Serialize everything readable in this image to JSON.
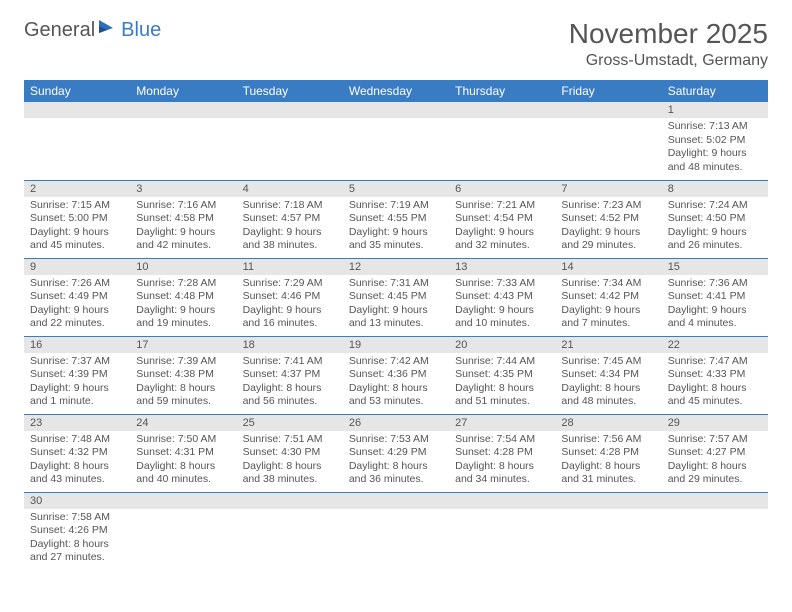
{
  "logo": {
    "text1": "General",
    "text2": "Blue"
  },
  "title": {
    "month": "November 2025",
    "location": "Gross-Umstadt, Germany"
  },
  "colors": {
    "header_bg": "#3a7cc4",
    "header_text": "#ffffff",
    "daynum_bg": "#e6e6e6",
    "text": "#555555",
    "row_border": "#3a7cc4",
    "page_bg": "#ffffff"
  },
  "typography": {
    "title_fontsize": 28,
    "location_fontsize": 16,
    "dayheader_fontsize": 12,
    "daynum_fontsize": 11,
    "body_fontsize": 10.5
  },
  "day_headers": [
    "Sunday",
    "Monday",
    "Tuesday",
    "Wednesday",
    "Thursday",
    "Friday",
    "Saturday"
  ],
  "weeks": [
    [
      {
        "n": "",
        "sr": "",
        "ss": "",
        "dl": ""
      },
      {
        "n": "",
        "sr": "",
        "ss": "",
        "dl": ""
      },
      {
        "n": "",
        "sr": "",
        "ss": "",
        "dl": ""
      },
      {
        "n": "",
        "sr": "",
        "ss": "",
        "dl": ""
      },
      {
        "n": "",
        "sr": "",
        "ss": "",
        "dl": ""
      },
      {
        "n": "",
        "sr": "",
        "ss": "",
        "dl": ""
      },
      {
        "n": "1",
        "sr": "Sunrise: 7:13 AM",
        "ss": "Sunset: 5:02 PM",
        "dl": "Daylight: 9 hours and 48 minutes."
      }
    ],
    [
      {
        "n": "2",
        "sr": "Sunrise: 7:15 AM",
        "ss": "Sunset: 5:00 PM",
        "dl": "Daylight: 9 hours and 45 minutes."
      },
      {
        "n": "3",
        "sr": "Sunrise: 7:16 AM",
        "ss": "Sunset: 4:58 PM",
        "dl": "Daylight: 9 hours and 42 minutes."
      },
      {
        "n": "4",
        "sr": "Sunrise: 7:18 AM",
        "ss": "Sunset: 4:57 PM",
        "dl": "Daylight: 9 hours and 38 minutes."
      },
      {
        "n": "5",
        "sr": "Sunrise: 7:19 AM",
        "ss": "Sunset: 4:55 PM",
        "dl": "Daylight: 9 hours and 35 minutes."
      },
      {
        "n": "6",
        "sr": "Sunrise: 7:21 AM",
        "ss": "Sunset: 4:54 PM",
        "dl": "Daylight: 9 hours and 32 minutes."
      },
      {
        "n": "7",
        "sr": "Sunrise: 7:23 AM",
        "ss": "Sunset: 4:52 PM",
        "dl": "Daylight: 9 hours and 29 minutes."
      },
      {
        "n": "8",
        "sr": "Sunrise: 7:24 AM",
        "ss": "Sunset: 4:50 PM",
        "dl": "Daylight: 9 hours and 26 minutes."
      }
    ],
    [
      {
        "n": "9",
        "sr": "Sunrise: 7:26 AM",
        "ss": "Sunset: 4:49 PM",
        "dl": "Daylight: 9 hours and 22 minutes."
      },
      {
        "n": "10",
        "sr": "Sunrise: 7:28 AM",
        "ss": "Sunset: 4:48 PM",
        "dl": "Daylight: 9 hours and 19 minutes."
      },
      {
        "n": "11",
        "sr": "Sunrise: 7:29 AM",
        "ss": "Sunset: 4:46 PM",
        "dl": "Daylight: 9 hours and 16 minutes."
      },
      {
        "n": "12",
        "sr": "Sunrise: 7:31 AM",
        "ss": "Sunset: 4:45 PM",
        "dl": "Daylight: 9 hours and 13 minutes."
      },
      {
        "n": "13",
        "sr": "Sunrise: 7:33 AM",
        "ss": "Sunset: 4:43 PM",
        "dl": "Daylight: 9 hours and 10 minutes."
      },
      {
        "n": "14",
        "sr": "Sunrise: 7:34 AM",
        "ss": "Sunset: 4:42 PM",
        "dl": "Daylight: 9 hours and 7 minutes."
      },
      {
        "n": "15",
        "sr": "Sunrise: 7:36 AM",
        "ss": "Sunset: 4:41 PM",
        "dl": "Daylight: 9 hours and 4 minutes."
      }
    ],
    [
      {
        "n": "16",
        "sr": "Sunrise: 7:37 AM",
        "ss": "Sunset: 4:39 PM",
        "dl": "Daylight: 9 hours and 1 minute."
      },
      {
        "n": "17",
        "sr": "Sunrise: 7:39 AM",
        "ss": "Sunset: 4:38 PM",
        "dl": "Daylight: 8 hours and 59 minutes."
      },
      {
        "n": "18",
        "sr": "Sunrise: 7:41 AM",
        "ss": "Sunset: 4:37 PM",
        "dl": "Daylight: 8 hours and 56 minutes."
      },
      {
        "n": "19",
        "sr": "Sunrise: 7:42 AM",
        "ss": "Sunset: 4:36 PM",
        "dl": "Daylight: 8 hours and 53 minutes."
      },
      {
        "n": "20",
        "sr": "Sunrise: 7:44 AM",
        "ss": "Sunset: 4:35 PM",
        "dl": "Daylight: 8 hours and 51 minutes."
      },
      {
        "n": "21",
        "sr": "Sunrise: 7:45 AM",
        "ss": "Sunset: 4:34 PM",
        "dl": "Daylight: 8 hours and 48 minutes."
      },
      {
        "n": "22",
        "sr": "Sunrise: 7:47 AM",
        "ss": "Sunset: 4:33 PM",
        "dl": "Daylight: 8 hours and 45 minutes."
      }
    ],
    [
      {
        "n": "23",
        "sr": "Sunrise: 7:48 AM",
        "ss": "Sunset: 4:32 PM",
        "dl": "Daylight: 8 hours and 43 minutes."
      },
      {
        "n": "24",
        "sr": "Sunrise: 7:50 AM",
        "ss": "Sunset: 4:31 PM",
        "dl": "Daylight: 8 hours and 40 minutes."
      },
      {
        "n": "25",
        "sr": "Sunrise: 7:51 AM",
        "ss": "Sunset: 4:30 PM",
        "dl": "Daylight: 8 hours and 38 minutes."
      },
      {
        "n": "26",
        "sr": "Sunrise: 7:53 AM",
        "ss": "Sunset: 4:29 PM",
        "dl": "Daylight: 8 hours and 36 minutes."
      },
      {
        "n": "27",
        "sr": "Sunrise: 7:54 AM",
        "ss": "Sunset: 4:28 PM",
        "dl": "Daylight: 8 hours and 34 minutes."
      },
      {
        "n": "28",
        "sr": "Sunrise: 7:56 AM",
        "ss": "Sunset: 4:28 PM",
        "dl": "Daylight: 8 hours and 31 minutes."
      },
      {
        "n": "29",
        "sr": "Sunrise: 7:57 AM",
        "ss": "Sunset: 4:27 PM",
        "dl": "Daylight: 8 hours and 29 minutes."
      }
    ],
    [
      {
        "n": "30",
        "sr": "Sunrise: 7:58 AM",
        "ss": "Sunset: 4:26 PM",
        "dl": "Daylight: 8 hours and 27 minutes."
      },
      {
        "n": "",
        "sr": "",
        "ss": "",
        "dl": ""
      },
      {
        "n": "",
        "sr": "",
        "ss": "",
        "dl": ""
      },
      {
        "n": "",
        "sr": "",
        "ss": "",
        "dl": ""
      },
      {
        "n": "",
        "sr": "",
        "ss": "",
        "dl": ""
      },
      {
        "n": "",
        "sr": "",
        "ss": "",
        "dl": ""
      },
      {
        "n": "",
        "sr": "",
        "ss": "",
        "dl": ""
      }
    ]
  ]
}
